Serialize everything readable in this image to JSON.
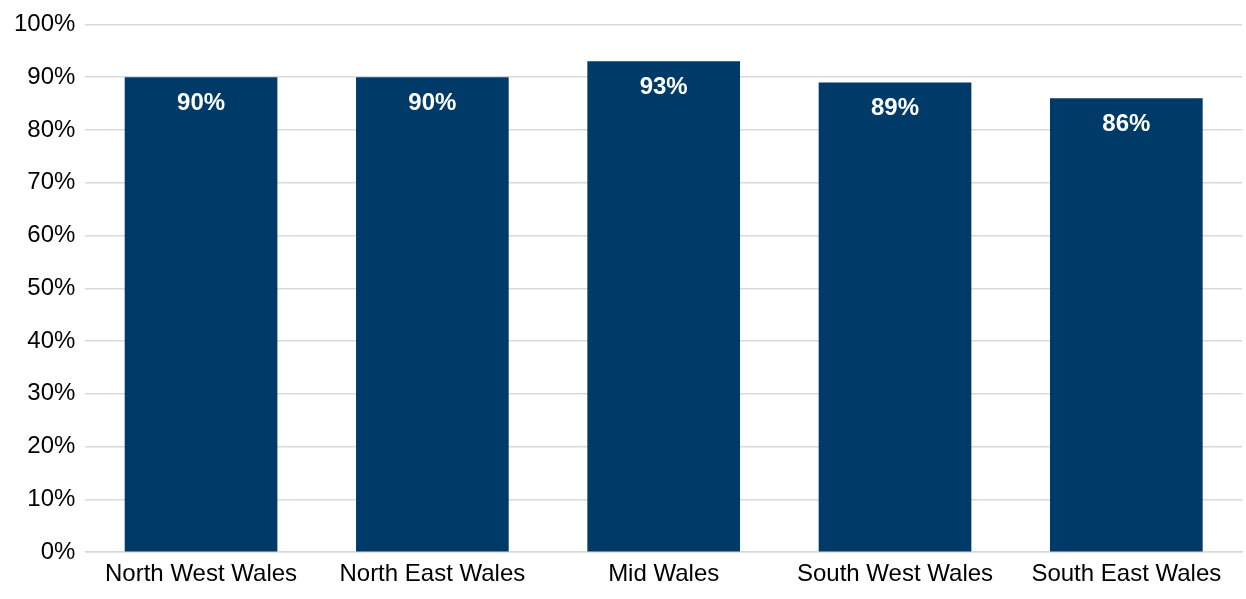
{
  "chart_data": {
    "type": "bar",
    "categories": [
      "North West Wales",
      "North East Wales",
      "Mid Wales",
      "South West Wales",
      "South East Wales"
    ],
    "values": [
      90,
      90,
      93,
      89,
      86
    ],
    "color": "#003a68",
    "ylim": [
      0,
      100
    ],
    "yticks": [
      {
        "value": 0,
        "label": "0%"
      },
      {
        "value": 10,
        "label": "10%"
      },
      {
        "value": 20,
        "label": "20%"
      },
      {
        "value": 30,
        "label": "30%"
      },
      {
        "value": 40,
        "label": "40%"
      },
      {
        "value": 50,
        "label": "50%"
      },
      {
        "value": 60,
        "label": "60%"
      },
      {
        "value": 70,
        "label": "70%"
      },
      {
        "value": 80,
        "label": "80%"
      },
      {
        "value": 90,
        "label": "90%"
      },
      {
        "value": 100,
        "label": "100%"
      }
    ],
    "grid": "y",
    "legend": false,
    "value_labels": [
      "90%",
      "90%",
      "93%",
      "89%",
      "86%"
    ]
  }
}
